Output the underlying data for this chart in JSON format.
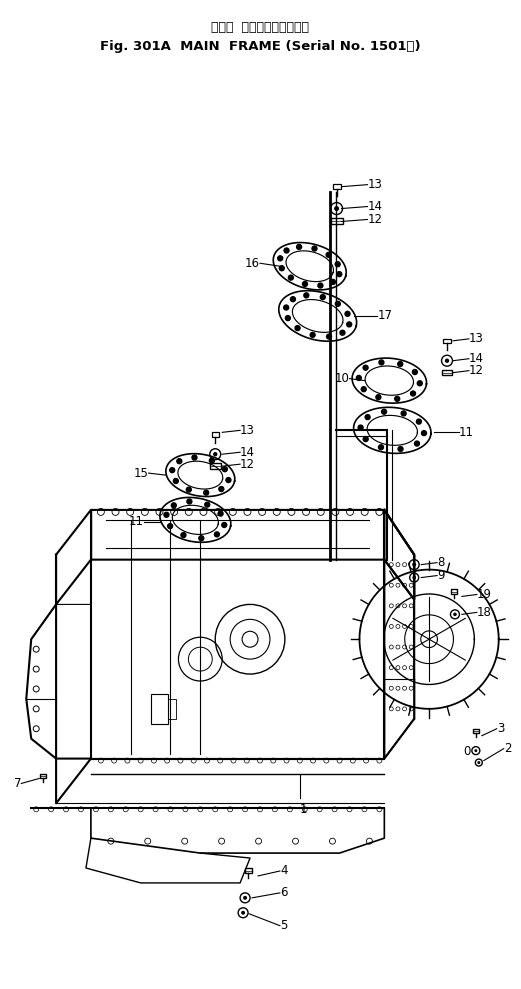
{
  "title_line1": "メイン  フレーム（適用号機",
  "title_line2": "Fig. 301A  MAIN  FRAME (Serial No. 1501～)",
  "bg_color": "#ffffff",
  "line_color": "#000000",
  "figsize": [
    5.21,
    9.89
  ],
  "dpi": 100
}
